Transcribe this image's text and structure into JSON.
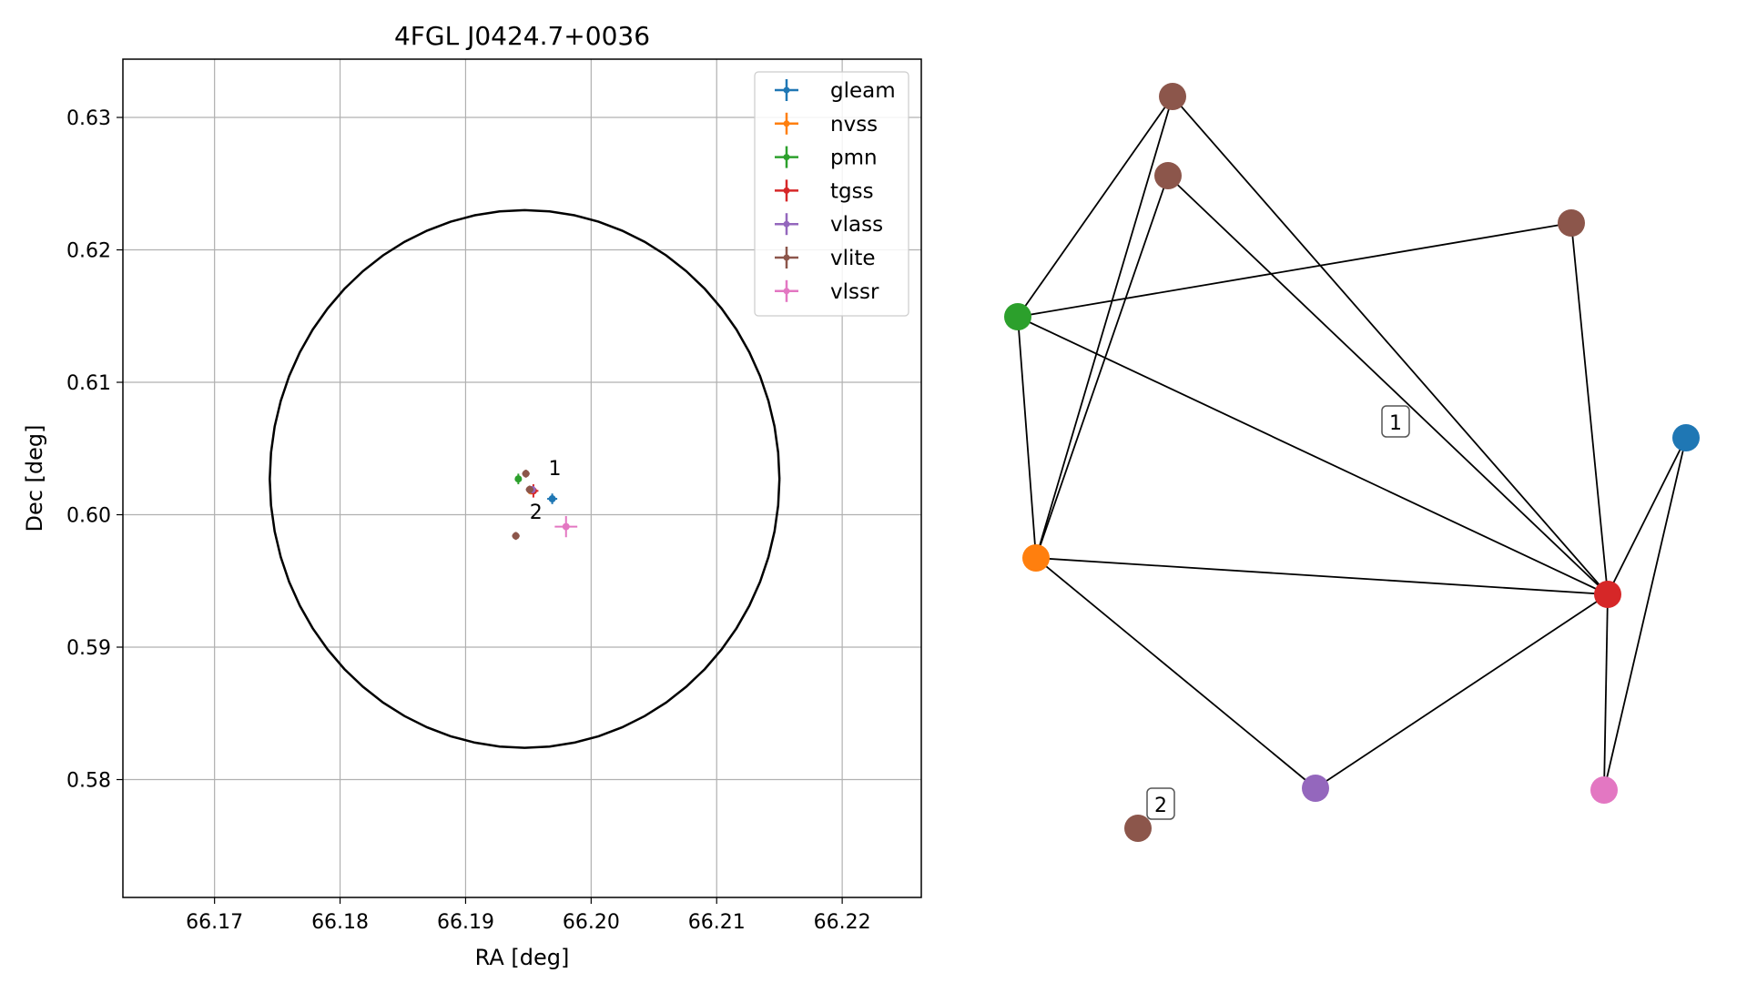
{
  "chart_data": [
    {
      "type": "scatter",
      "title": "4FGL J0424.7+0036",
      "xlabel": "RA [deg]",
      "ylabel": "Dec [deg]",
      "xlim": [
        66.1627,
        66.2263
      ],
      "ylim": [
        0.5711,
        0.6344
      ],
      "xticks": [
        "66.17",
        "66.18",
        "66.19",
        "66.20",
        "66.21",
        "66.22"
      ],
      "yticks": [
        "0.58",
        "0.59",
        "0.60",
        "0.61",
        "0.62",
        "0.63"
      ],
      "grid": true,
      "legend": "top-right",
      "circle": {
        "center_ra": 66.1947,
        "center_dec": 0.6027,
        "radius_deg": 0.0203
      },
      "series": [
        {
          "name": "gleam",
          "color": "#1f77b4",
          "points": [
            {
              "ra": 66.1969,
              "dec": 0.6012,
              "ra_err": 0.0004,
              "dec_err": 0.0004
            }
          ]
        },
        {
          "name": "nvss",
          "color": "#ff7f0e",
          "points": [
            {
              "ra": 66.1952,
              "dec": 0.6018,
              "ra_err": 0.0001,
              "dec_err": 0.0001
            }
          ]
        },
        {
          "name": "pmn",
          "color": "#2ca02c",
          "points": [
            {
              "ra": 66.1942,
              "dec": 0.6027,
              "ra_err": 0.0002,
              "dec_err": 0.0004
            }
          ]
        },
        {
          "name": "tgss",
          "color": "#d62728",
          "points": [
            {
              "ra": 66.1954,
              "dec": 0.6018,
              "ra_err": 0.0004,
              "dec_err": 0.0005
            }
          ]
        },
        {
          "name": "vlass",
          "color": "#9467bd",
          "points": [
            {
              "ra": 66.1953,
              "dec": 0.6019,
              "ra_err": 0.0001,
              "dec_err": 0.0001
            }
          ]
        },
        {
          "name": "vlite",
          "color": "#8c564b",
          "points": [
            {
              "ra": 66.1948,
              "dec": 0.6031,
              "ra_err": 0.0003,
              "dec_err": 0.0003
            },
            {
              "ra": 66.1951,
              "dec": 0.6019,
              "ra_err": 0.0003,
              "dec_err": 0.0003
            },
            {
              "ra": 66.194,
              "dec": 0.5984,
              "ra_err": 0.0003,
              "dec_err": 0.0003
            }
          ]
        },
        {
          "name": "vlssr",
          "color": "#e377c2",
          "points": [
            {
              "ra": 66.198,
              "dec": 0.5991,
              "ra_err": 0.0009,
              "dec_err": 0.0008
            }
          ]
        }
      ],
      "annotations": [
        {
          "text": "1",
          "ra": 66.1966,
          "dec": 0.603
        },
        {
          "text": "2",
          "ra": 66.1951,
          "dec": 0.5997
        }
      ]
    },
    {
      "type": "network",
      "nodes": [
        {
          "id": "vlite-a",
          "color": "#8c564b"
        },
        {
          "id": "vlite-b",
          "color": "#8c564b"
        },
        {
          "id": "vlite-c",
          "color": "#8c564b"
        },
        {
          "id": "pmn",
          "color": "#2ca02c"
        },
        {
          "id": "nvss",
          "color": "#ff7f0e"
        },
        {
          "id": "gleam",
          "color": "#1f77b4"
        },
        {
          "id": "tgss",
          "color": "#d62728"
        },
        {
          "id": "vlass",
          "color": "#9467bd"
        },
        {
          "id": "vlssr",
          "color": "#e377c2"
        },
        {
          "id": "vlite-d",
          "color": "#8c564b"
        }
      ],
      "edges": [
        [
          "vlite-a",
          "pmn"
        ],
        [
          "vlite-a",
          "nvss"
        ],
        [
          "vlite-a",
          "tgss"
        ],
        [
          "vlite-b",
          "pmn"
        ],
        [
          "vlite-b",
          "tgss"
        ],
        [
          "vlite-c",
          "nvss"
        ],
        [
          "vlite-c",
          "tgss"
        ],
        [
          "pmn",
          "nvss"
        ],
        [
          "pmn",
          "tgss"
        ],
        [
          "nvss",
          "tgss"
        ],
        [
          "nvss",
          "vlass"
        ],
        [
          "tgss",
          "vlass"
        ],
        [
          "tgss",
          "gleam"
        ],
        [
          "tgss",
          "vlssr"
        ],
        [
          "gleam",
          "vlssr"
        ]
      ],
      "labels": [
        {
          "text": "1"
        },
        {
          "text": "2"
        }
      ]
    }
  ]
}
